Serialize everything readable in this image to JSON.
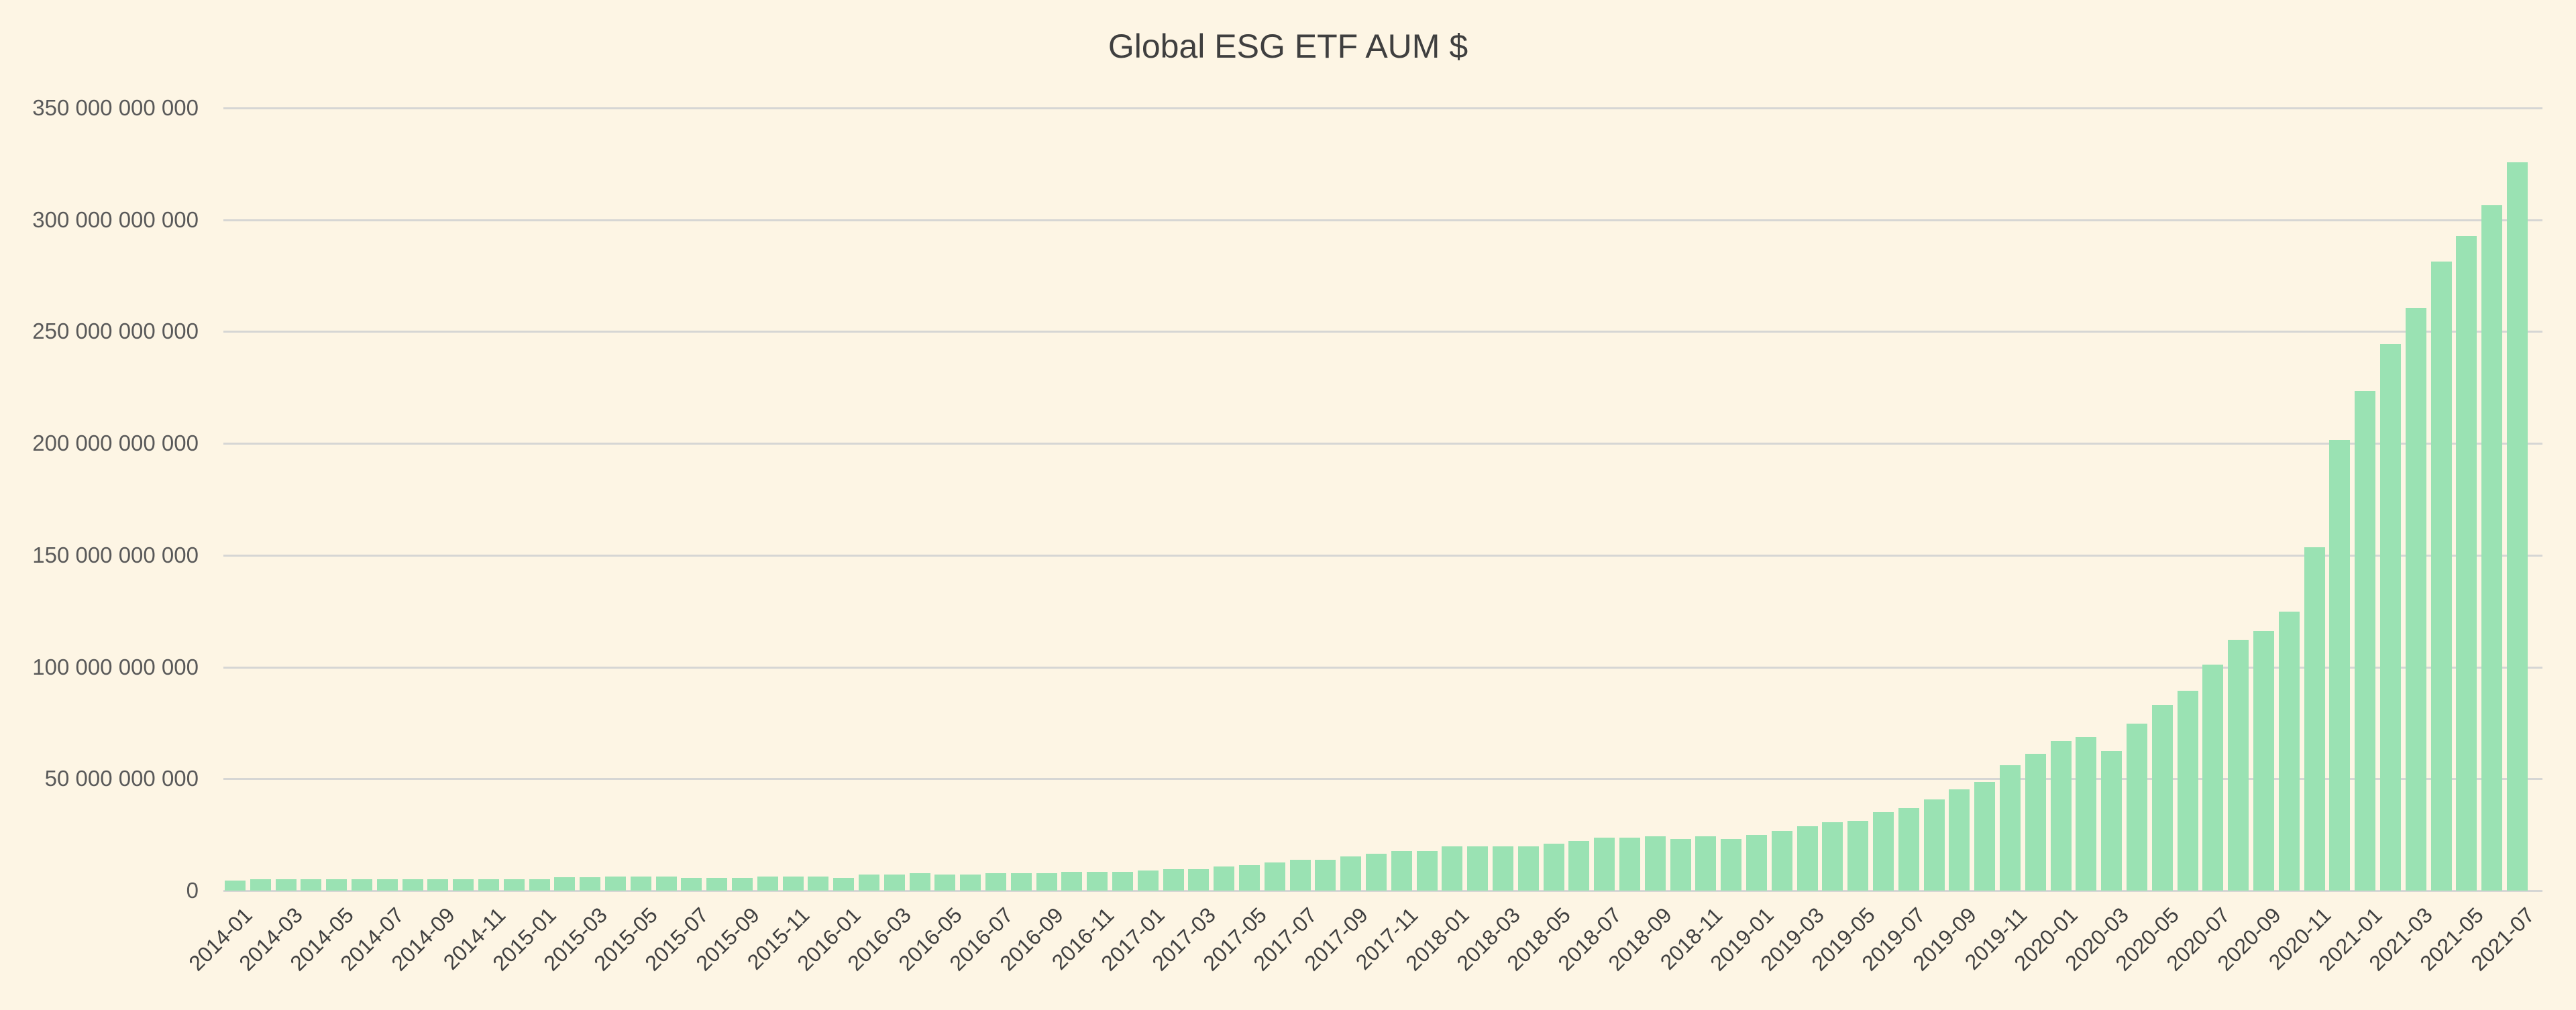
{
  "chart_data": {
    "type": "bar",
    "title": "Global ESG ETF AUM $",
    "xlabel": "",
    "ylabel": "",
    "ylim": [
      0,
      350000000000
    ],
    "grid": true,
    "legend": null,
    "bar_color": "#9ae2b3",
    "background_color": "#fdf5e4",
    "y_ticks": [
      {
        "value": 0,
        "label": "0"
      },
      {
        "value": 50000000000,
        "label": "50 000 000 000"
      },
      {
        "value": 100000000000,
        "label": "100 000 000 000"
      },
      {
        "value": 150000000000,
        "label": "150 000 000 000"
      },
      {
        "value": 200000000000,
        "label": "200 000 000 000"
      },
      {
        "value": 250000000000,
        "label": "250 000 000 000"
      },
      {
        "value": 300000000000,
        "label": "300 000 000 000"
      },
      {
        "value": 350000000000,
        "label": "350 000 000 000"
      }
    ],
    "categories": [
      "2014-01",
      "2014-02",
      "2014-03",
      "2014-04",
      "2014-05",
      "2014-06",
      "2014-07",
      "2014-08",
      "2014-09",
      "2014-10",
      "2014-11",
      "2014-12",
      "2015-01",
      "2015-02",
      "2015-03",
      "2015-04",
      "2015-05",
      "2015-06",
      "2015-07",
      "2015-08",
      "2015-09",
      "2015-10",
      "2015-11",
      "2015-12",
      "2016-01",
      "2016-02",
      "2016-03",
      "2016-04",
      "2016-05",
      "2016-06",
      "2016-07",
      "2016-08",
      "2016-09",
      "2016-10",
      "2016-11",
      "2016-12",
      "2017-01",
      "2017-02",
      "2017-03",
      "2017-04",
      "2017-05",
      "2017-06",
      "2017-07",
      "2017-08",
      "2017-09",
      "2017-10",
      "2017-11",
      "2017-12",
      "2018-01",
      "2018-02",
      "2018-03",
      "2018-04",
      "2018-05",
      "2018-06",
      "2018-07",
      "2018-08",
      "2018-09",
      "2018-10",
      "2018-11",
      "2018-12",
      "2019-01",
      "2019-02",
      "2019-03",
      "2019-04",
      "2019-05",
      "2019-06",
      "2019-07",
      "2019-08",
      "2019-09",
      "2019-10",
      "2019-11",
      "2019-12",
      "2020-01",
      "2020-02",
      "2020-03",
      "2020-04",
      "2020-05",
      "2020-06",
      "2020-07",
      "2020-08",
      "2020-09",
      "2020-10",
      "2020-11",
      "2020-12",
      "2021-01",
      "2021-02",
      "2021-03",
      "2021-04",
      "2021-05",
      "2021-06",
      "2021-07"
    ],
    "x_tick_labels_shown": [
      "2014-01",
      "2014-03",
      "2014-05",
      "2014-07",
      "2014-09",
      "2014-11",
      "2015-01",
      "2015-03",
      "2015-05",
      "2015-07",
      "2015-09",
      "2015-11",
      "2016-01",
      "2016-03",
      "2016-05",
      "2016-07",
      "2016-09",
      "2016-11",
      "2017-01",
      "2017-03",
      "2017-05",
      "2017-07",
      "2017-09",
      "2017-11",
      "2018-01",
      "2018-03",
      "2018-05",
      "2018-07",
      "2018-09",
      "2018-11",
      "2019-01",
      "2019-03",
      "2019-05",
      "2019-07",
      "2019-09",
      "2019-11",
      "2020-01",
      "2020-03",
      "2020-05",
      "2020-07",
      "2020-09",
      "2020-11",
      "2021-01",
      "2021-03",
      "2021-05",
      "2021-07"
    ],
    "values": [
      4500000000,
      5200000000,
      5200000000,
      5200000000,
      5200000000,
      5200000000,
      5200000000,
      5200000000,
      5200000000,
      5200000000,
      5200000000,
      5200000000,
      5200000000,
      5900000000,
      5900000000,
      6400000000,
      6400000000,
      6400000000,
      5800000000,
      5800000000,
      5800000000,
      6400000000,
      6400000000,
      6400000000,
      5800000000,
      7100000000,
      7100000000,
      7700000000,
      7100000000,
      7100000000,
      7700000000,
      7700000000,
      7700000000,
      8300000000,
      8300000000,
      8300000000,
      8900000000,
      9500000000,
      9500000000,
      10800000000,
      11400000000,
      12700000000,
      13900000000,
      13900000000,
      15200000000,
      16500000000,
      17700000000,
      17700000000,
      19800000000,
      19800000000,
      19800000000,
      19800000000,
      21000000000,
      22300000000,
      23600000000,
      23600000000,
      24200000000,
      23000000000,
      24200000000,
      23000000000,
      24900000000,
      26800000000,
      28700000000,
      30600000000,
      31300000000,
      35000000000,
      36900000000,
      40800000000,
      45200000000,
      48500000000,
      56100000000,
      61100000000,
      66900000000,
      68700000000,
      62300000000,
      74600000000,
      83200000000,
      89500000000,
      101100000000,
      112100000000,
      116200000000,
      124700000000,
      153700000000,
      201400000000,
      223500000000,
      244500000000,
      260500000000,
      281300000000,
      292700000000,
      306600000000,
      325600000000
    ]
  }
}
